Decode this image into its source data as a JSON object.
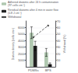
{
  "chart_data": {
    "type": "bar",
    "categories": [
      "PDMSs",
      "BPS"
    ],
    "series": [
      {
        "name": "Adhered diatoms after 24 h contamination\n(97 cells cm⁻²)",
        "type": "bar",
        "color": "#b0c8b0",
        "values": [
          5200,
          2200
        ],
        "errors": [
          900,
          600
        ]
      },
      {
        "name": "Residual diatoms after 4 min in water flow\n(0.8 J cm⁻²)",
        "type": "bar",
        "color": "#222222",
        "values": [
          3200,
          400
        ],
        "errors": [
          700,
          200
        ]
      },
      {
        "name": "Withdrawal",
        "type": "line",
        "axis": "y2",
        "color": "#444444",
        "marker": "diamond",
        "line_style": "dashed",
        "values": [
          45,
          63
        ]
      }
    ],
    "ylabel": "Diatom density (cells cm⁻²)",
    "y2label": "Withdrawal (%)",
    "ylim": [
      0,
      7000
    ],
    "yticks": [
      1000,
      2000,
      3000,
      4000,
      5000,
      6000
    ],
    "y2lim": [
      0,
      70
    ],
    "y2ticks": [
      10,
      20,
      30,
      40,
      50,
      60,
      70
    ],
    "grid": true,
    "legend": "upper left"
  }
}
